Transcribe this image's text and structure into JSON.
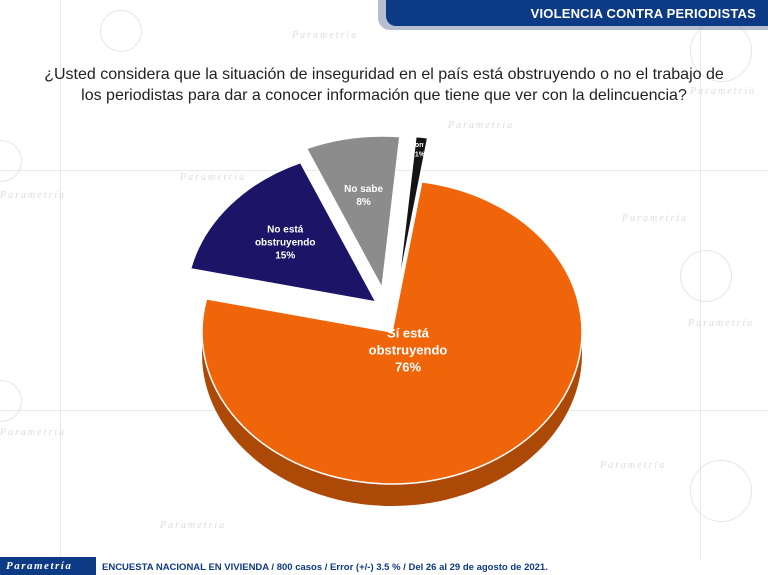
{
  "header": {
    "title": "VIOLENCIA CONTRA PERIODISTAS"
  },
  "question": "¿Usted considera que la situación de inseguridad en el país está obstruyendo o no el trabajo de los periodistas para dar a conocer información que tiene que ver con la delincuencia?",
  "chart_data": {
    "type": "pie",
    "title": "",
    "slices": [
      {
        "label": "Sí está obstruyendo",
        "value": 76,
        "value_label": "76%",
        "color": "#f0650a"
      },
      {
        "label": "No está obstruyendo",
        "value": 15,
        "value_label": "15%",
        "color": "#1c1466"
      },
      {
        "label": "No sabe",
        "value": 8,
        "value_label": "8%",
        "color": "#8c8c8c"
      },
      {
        "label": "No contestó",
        "value": 1,
        "value_label": "1%",
        "color": "#141414"
      }
    ],
    "label_color": "#ffffff"
  },
  "footer": {
    "logo": "Parametría",
    "text": "ENCUESTA NACIONAL EN VIVIENDA / 800 casos / Error (+/-) 3.5 % / Del 26 al 29 de agosto de 2021."
  },
  "background": {
    "watermark": "Parametría"
  }
}
